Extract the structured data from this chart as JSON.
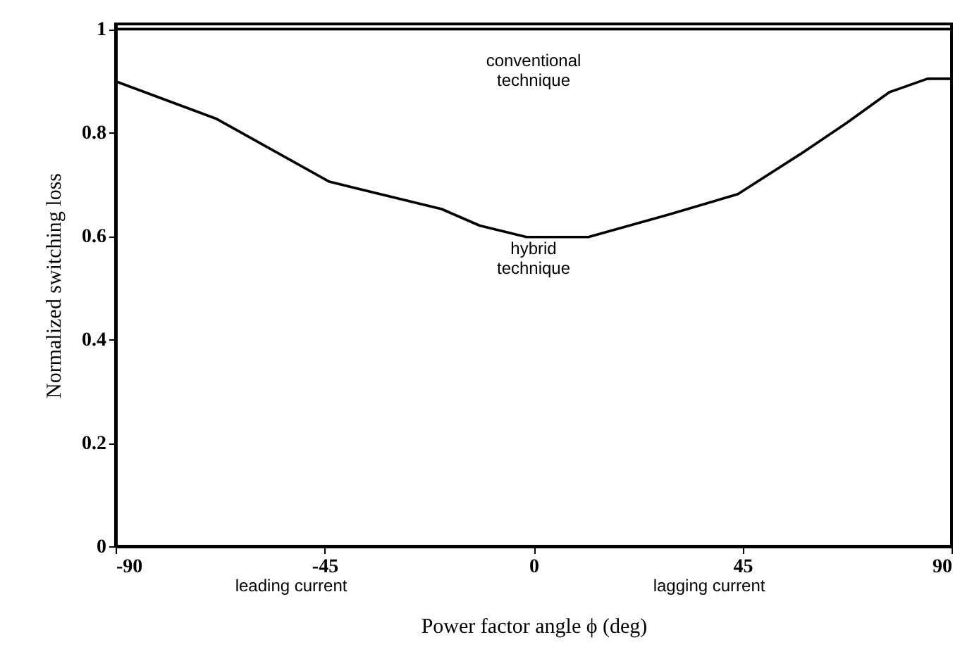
{
  "chart_data": {
    "type": "line",
    "xlabel": "Power factor angle ϕ (deg)",
    "ylabel": "Normalized switching loss",
    "x": [
      -90,
      -68.4,
      -44,
      -19.8,
      -11.6,
      -1.5,
      11.8,
      29,
      44,
      57.4,
      67.5,
      76.6,
      84.8,
      90
    ],
    "series": [
      {
        "color": "#000000",
        "x": [
          -90,
          90
        ],
        "values": [
          1,
          1
        ]
      },
      {
        "color": "#000000",
        "values": [
          0.899,
          0.827,
          0.705,
          0.652,
          0.62,
          0.598,
          0.598,
          0.641,
          0.681,
          0.758,
          0.819,
          0.878,
          0.904,
          0.904
        ]
      }
    ],
    "xlim": [
      -90,
      90
    ],
    "xticks": [
      -90,
      -45,
      0,
      45,
      90
    ],
    "ylim": [
      0,
      1.01
    ],
    "yticks": [
      0,
      0.2,
      0.4,
      0.6,
      0.8,
      1
    ],
    "grid": false,
    "marker": "none",
    "line_style": "solid",
    "annotations": [
      "conventional\ntechnique",
      "hybrid\ntechnique",
      "leading current",
      "lagging current"
    ]
  }
}
